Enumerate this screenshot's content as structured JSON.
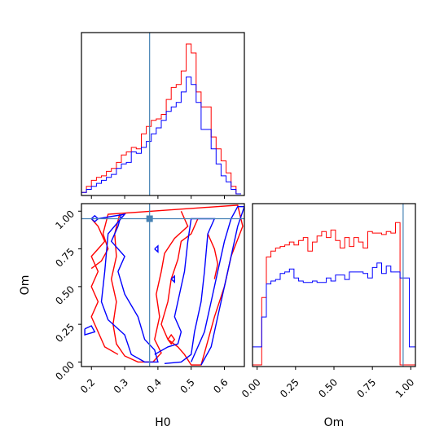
{
  "colors": {
    "red": "#ff0000",
    "blue": "#0000ff",
    "truth": "#4682b4"
  },
  "chart_data": {
    "type": "corner",
    "truth": {
      "H0": 0.375,
      "Om": 0.95
    },
    "panels": [
      {
        "id": "hist-H0",
        "type": "histogram",
        "xlim": [
          0.17,
          0.66
        ],
        "ylim": [
          0,
          1
        ],
        "bin_edges": [
          0.17,
          0.185,
          0.2,
          0.215,
          0.23,
          0.245,
          0.26,
          0.275,
          0.29,
          0.305,
          0.32,
          0.335,
          0.35,
          0.365,
          0.38,
          0.395,
          0.41,
          0.425,
          0.44,
          0.455,
          0.47,
          0.485,
          0.5,
          0.515,
          0.53,
          0.545,
          0.56,
          0.575,
          0.59,
          0.605,
          0.62,
          0.635,
          0.65
        ],
        "series": [
          {
            "color": "red",
            "values": [
              0.01,
              0.05,
              0.09,
              0.11,
              0.12,
              0.15,
              0.17,
              0.21,
              0.26,
              0.28,
              0.31,
              0.3,
              0.4,
              0.45,
              0.49,
              0.5,
              0.53,
              0.63,
              0.71,
              0.73,
              0.82,
              1.0,
              0.94,
              0.68,
              0.58,
              0.58,
              0.38,
              0.3,
              0.22,
              0.14,
              0.05,
              0.0
            ]
          },
          {
            "color": "blue",
            "values": [
              0.01,
              0.03,
              0.05,
              0.07,
              0.09,
              0.11,
              0.13,
              0.17,
              0.2,
              0.21,
              0.28,
              0.27,
              0.31,
              0.35,
              0.4,
              0.44,
              0.49,
              0.55,
              0.58,
              0.61,
              0.68,
              0.78,
              0.73,
              0.61,
              0.43,
              0.43,
              0.3,
              0.2,
              0.12,
              0.08,
              0.03,
              0.0
            ]
          }
        ]
      },
      {
        "id": "contour-H0-Om",
        "type": "contour",
        "xlabel": "H0",
        "ylabel": "Om",
        "xlim": [
          0.17,
          0.66
        ],
        "ylim": [
          -0.03,
          1.05
        ],
        "xticks": [
          {
            "v": 0.2,
            "label": "0.2"
          },
          {
            "v": 0.3,
            "label": "0.3"
          },
          {
            "v": 0.4,
            "label": "0.4"
          },
          {
            "v": 0.5,
            "label": "0.5"
          },
          {
            "v": 0.6,
            "label": "0.6"
          }
        ],
        "yticks": [
          {
            "v": 0.0,
            "label": "0.00"
          },
          {
            "v": 0.25,
            "label": "0.25"
          },
          {
            "v": 0.5,
            "label": "0.50"
          },
          {
            "v": 0.75,
            "label": "0.75"
          },
          {
            "v": 1.0,
            "label": "1.00"
          }
        ],
        "contours": [
          {
            "color": "red",
            "points": [
              [
                0.285,
                0.98
              ],
              [
                0.27,
                0.85
              ],
              [
                0.275,
                0.7
              ],
              [
                0.26,
                0.55
              ],
              [
                0.275,
                0.4
              ],
              [
                0.265,
                0.25
              ],
              [
                0.275,
                0.12
              ],
              [
                0.3,
                0.04
              ],
              [
                0.34,
                0.0
              ],
              [
                0.385,
                0.0
              ],
              [
                0.41,
                0.06
              ],
              [
                0.39,
                0.15
              ],
              [
                0.405,
                0.3
              ],
              [
                0.395,
                0.45
              ],
              [
                0.41,
                0.6
              ],
              [
                0.42,
                0.72
              ],
              [
                0.45,
                0.82
              ],
              [
                0.49,
                0.9
              ],
              [
                0.47,
                1.0
              ]
            ]
          },
          {
            "color": "red",
            "points": [
              [
                0.2,
                0.62
              ],
              [
                0.23,
                0.67
              ],
              [
                0.25,
                0.75
              ],
              [
                0.235,
                0.85
              ],
              [
                0.25,
                0.98
              ],
              [
                0.64,
                1.04
              ],
              [
                0.655,
                0.9
              ],
              [
                0.62,
                0.7
              ],
              [
                0.6,
                0.5
              ],
              [
                0.57,
                0.3
              ],
              [
                0.545,
                0.1
              ],
              [
                0.53,
                -0.02
              ],
              [
                0.5,
                -0.02
              ],
              [
                0.48,
                0.05
              ],
              [
                0.46,
                0.1
              ],
              [
                0.43,
                0.15
              ],
              [
                0.41,
                0.25
              ],
              [
                0.43,
                0.4
              ],
              [
                0.44,
                0.55
              ],
              [
                0.46,
                0.68
              ],
              [
                0.47,
                0.8
              ],
              [
                0.5,
                0.85
              ],
              [
                0.52,
                0.95
              ]
            ]
          },
          {
            "color": "red",
            "points": [
              [
                0.2,
                0.95
              ],
              [
                0.22,
                0.9
              ],
              [
                0.24,
                0.8
              ],
              [
                0.22,
                0.75
              ],
              [
                0.2,
                0.7
              ],
              [
                0.22,
                0.6
              ],
              [
                0.2,
                0.5
              ],
              [
                0.22,
                0.4
              ],
              [
                0.2,
                0.3
              ],
              [
                0.22,
                0.2
              ],
              [
                0.24,
                0.1
              ],
              [
                0.28,
                0.05
              ]
            ]
          },
          {
            "color": "red",
            "points": [
              [
                0.57,
                0.55
              ],
              [
                0.58,
                0.65
              ],
              [
                0.57,
                0.75
              ],
              [
                0.55,
                0.85
              ]
            ]
          },
          {
            "color": "red",
            "points": [
              [
                0.43,
                0.15
              ],
              [
                0.44,
                0.18
              ],
              [
                0.45,
                0.15
              ],
              [
                0.44,
                0.12
              ],
              [
                0.43,
                0.15
              ]
            ]
          },
          {
            "color": "blue",
            "points": [
              [
                0.22,
                0.95
              ],
              [
                0.3,
                0.98
              ],
              [
                0.25,
                0.85
              ],
              [
                0.24,
                0.6
              ],
              [
                0.23,
                0.4
              ],
              [
                0.25,
                0.28
              ],
              [
                0.3,
                0.18
              ],
              [
                0.32,
                0.05
              ],
              [
                0.36,
                0.0
              ],
              [
                0.4,
                0.0
              ],
              [
                0.39,
                0.08
              ],
              [
                0.36,
                0.15
              ],
              [
                0.34,
                0.3
              ],
              [
                0.3,
                0.45
              ],
              [
                0.28,
                0.6
              ],
              [
                0.3,
                0.7
              ],
              [
                0.26,
                0.8
              ],
              [
                0.28,
                0.9
              ],
              [
                0.29,
                0.98
              ]
            ]
          },
          {
            "color": "blue",
            "points": [
              [
                0.39,
                0.05
              ],
              [
                0.43,
                0.1
              ],
              [
                0.46,
                0.12
              ],
              [
                0.47,
                0.2
              ],
              [
                0.45,
                0.3
              ],
              [
                0.47,
                0.5
              ],
              [
                0.48,
                0.6
              ],
              [
                0.49,
                0.8
              ],
              [
                0.5,
                0.95
              ],
              [
                0.57,
                0.95
              ],
              [
                0.55,
                0.85
              ],
              [
                0.54,
                0.6
              ],
              [
                0.53,
                0.4
              ],
              [
                0.51,
                0.2
              ],
              [
                0.5,
                0.05
              ],
              [
                0.47,
                0.0
              ],
              [
                0.42,
                -0.01
              ]
            ]
          },
          {
            "color": "blue",
            "points": [
              [
                0.5,
                0.0
              ],
              [
                0.54,
                0.2
              ],
              [
                0.56,
                0.4
              ],
              [
                0.58,
                0.6
              ],
              [
                0.6,
                0.8
              ],
              [
                0.62,
                0.95
              ],
              [
                0.64,
                1.03
              ],
              [
                0.66,
                1.03
              ],
              [
                0.64,
                0.9
              ],
              [
                0.62,
                0.7
              ],
              [
                0.6,
                0.5
              ],
              [
                0.58,
                0.3
              ],
              [
                0.56,
                0.1
              ],
              [
                0.53,
                -0.02
              ]
            ]
          },
          {
            "color": "blue",
            "points": [
              [
                0.18,
                0.22
              ],
              [
                0.2,
                0.24
              ],
              [
                0.21,
                0.2
              ],
              [
                0.18,
                0.18
              ],
              [
                0.18,
                0.22
              ]
            ]
          },
          {
            "color": "blue",
            "points": [
              [
                0.2,
                0.95
              ],
              [
                0.21,
                0.97
              ],
              [
                0.22,
                0.95
              ],
              [
                0.21,
                0.93
              ],
              [
                0.2,
                0.95
              ]
            ]
          },
          {
            "color": "blue",
            "points": [
              [
                0.39,
                0.75
              ],
              [
                0.4,
                0.77
              ],
              [
                0.4,
                0.73
              ],
              [
                0.39,
                0.75
              ]
            ]
          },
          {
            "color": "blue",
            "points": [
              [
                0.44,
                0.55
              ],
              [
                0.45,
                0.57
              ],
              [
                0.45,
                0.53
              ],
              [
                0.44,
                0.55
              ]
            ]
          }
        ]
      },
      {
        "id": "hist-Om",
        "type": "histogram",
        "xlabel": "Om",
        "xlim": [
          -0.03,
          1.03
        ],
        "ylim": [
          0,
          1
        ],
        "xticks": [
          {
            "v": 0.0,
            "label": "0.00"
          },
          {
            "v": 0.25,
            "label": "0.25"
          },
          {
            "v": 0.5,
            "label": "0.50"
          },
          {
            "v": 0.75,
            "label": "0.75"
          },
          {
            "v": 1.0,
            "label": "1.00"
          }
        ],
        "bin_edges": [
          -0.03,
          0.0,
          0.03,
          0.06,
          0.09,
          0.12,
          0.15,
          0.18,
          0.21,
          0.24,
          0.27,
          0.3,
          0.33,
          0.36,
          0.39,
          0.42,
          0.45,
          0.48,
          0.51,
          0.54,
          0.57,
          0.6,
          0.63,
          0.66,
          0.69,
          0.72,
          0.75,
          0.78,
          0.81,
          0.84,
          0.87,
          0.9,
          0.93,
          0.96,
          0.99,
          1.03
        ],
        "series": [
          {
            "color": "red",
            "values": [
              0.0,
              0.0,
              0.45,
              0.72,
              0.76,
              0.78,
              0.79,
              0.8,
              0.82,
              0.8,
              0.83,
              0.85,
              0.76,
              0.82,
              0.86,
              0.89,
              0.85,
              0.9,
              0.83,
              0.78,
              0.85,
              0.79,
              0.85,
              0.82,
              0.78,
              0.89,
              0.88,
              0.88,
              0.87,
              0.89,
              0.88,
              0.95,
              0.0,
              0.0,
              0.0
            ]
          },
          {
            "color": "blue",
            "values": [
              0.12,
              0.12,
              0.32,
              0.54,
              0.56,
              0.57,
              0.61,
              0.62,
              0.64,
              0.58,
              0.56,
              0.55,
              0.55,
              0.56,
              0.55,
              0.55,
              0.58,
              0.56,
              0.6,
              0.6,
              0.57,
              0.62,
              0.62,
              0.62,
              0.61,
              0.58,
              0.65,
              0.68,
              0.61,
              0.66,
              0.62,
              0.62,
              0.58,
              0.58,
              0.12
            ]
          }
        ]
      }
    ]
  }
}
